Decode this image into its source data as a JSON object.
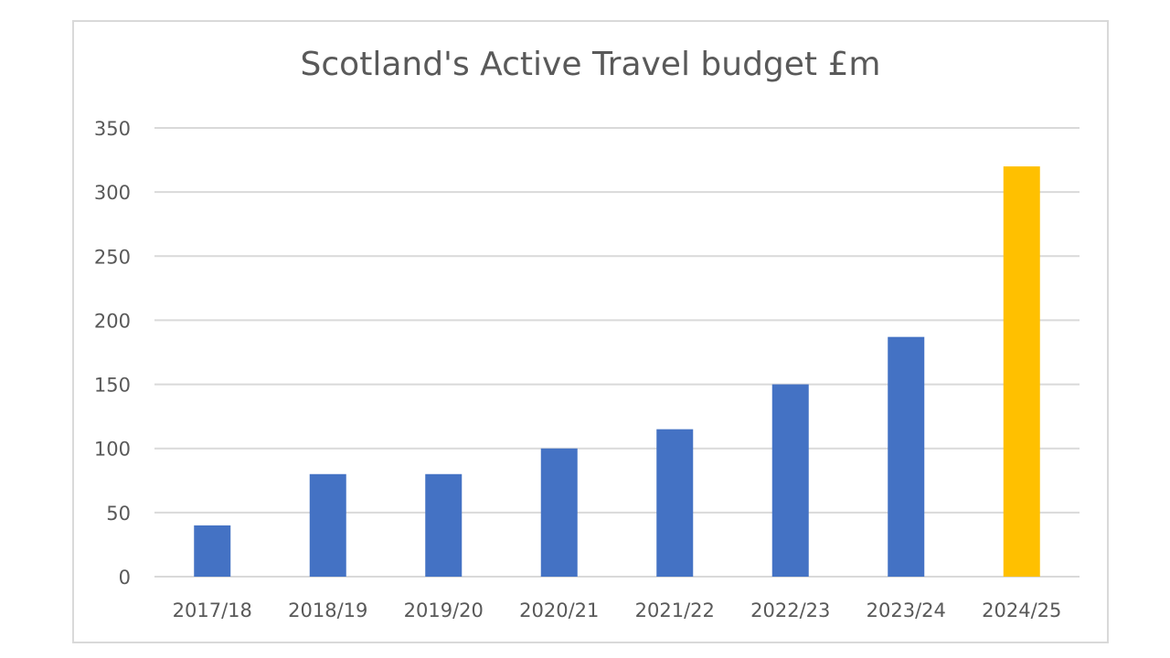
{
  "chart_data": {
    "type": "bar",
    "title": "Scotland's Active Travel budget £m",
    "xlabel": "",
    "ylabel": "",
    "categories": [
      "2017/18",
      "2018/19",
      "2019/20",
      "2020/21",
      "2021/22",
      "2022/23",
      "2023/24",
      "2024/25"
    ],
    "values": [
      40,
      80,
      80,
      100,
      115,
      150,
      187,
      320
    ],
    "ylim": [
      0,
      350
    ],
    "yticks": [
      0,
      50,
      100,
      150,
      200,
      250,
      300,
      350
    ],
    "grid": true,
    "legend": "none",
    "colors": {
      "bar": "#4472c4",
      "highlight": "#ffc000",
      "grid": "#d9d9d9",
      "text": "#595959"
    },
    "highlight_index": 7
  }
}
